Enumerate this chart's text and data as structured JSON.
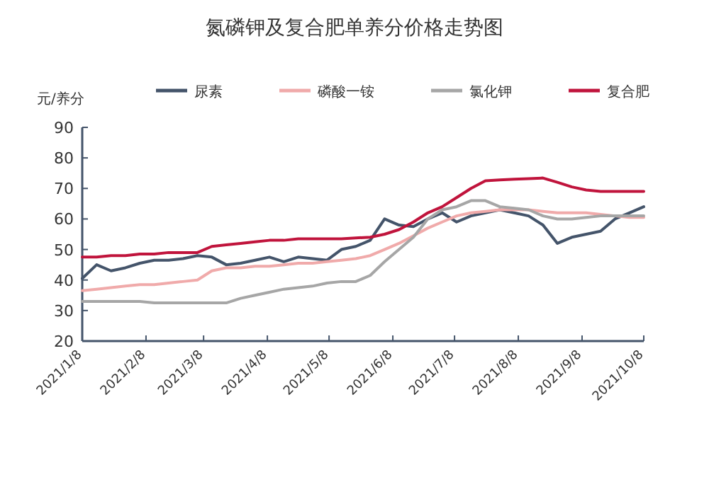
{
  "chart_data": {
    "type": "line",
    "title": "氮磷钾及复合肥单养分价格走势图",
    "ylabel": "元/养分",
    "x": [
      "2021-01-08",
      "2021-01-15",
      "2021-01-22",
      "2021-01-29",
      "2021-02-05",
      "2021-02-12",
      "2021-02-19",
      "2021-02-26",
      "2021-03-05",
      "2021-03-12",
      "2021-03-19",
      "2021-03-26",
      "2021-04-02",
      "2021-04-09",
      "2021-04-16",
      "2021-04-23",
      "2021-04-30",
      "2021-05-07",
      "2021-05-14",
      "2021-05-21",
      "2021-05-28",
      "2021-06-04",
      "2021-06-11",
      "2021-06-18",
      "2021-06-25",
      "2021-07-02",
      "2021-07-09",
      "2021-07-16",
      "2021-07-23",
      "2021-07-30",
      "2021-08-06",
      "2021-08-13",
      "2021-08-20",
      "2021-08-27",
      "2021-09-03",
      "2021-09-10",
      "2021-09-17",
      "2021-09-24",
      "2021-10-01",
      "2021-10-08"
    ],
    "series": [
      {
        "name": "尿素",
        "color": "#44546a",
        "values": [
          40.5,
          45,
          43,
          44,
          45.5,
          46.5,
          46.5,
          47,
          48,
          47.5,
          45,
          45.5,
          46.5,
          47.5,
          46,
          47.5,
          47,
          46.5,
          50,
          51,
          53,
          60,
          58,
          57.5,
          60,
          62,
          59,
          61,
          62,
          63,
          62,
          61,
          58,
          52,
          54,
          55,
          56,
          60,
          62,
          64
        ]
      },
      {
        "name": "磷酸一铵",
        "color": "#f0aaaa",
        "values": [
          36.5,
          37,
          37.5,
          38,
          38.5,
          38.5,
          39,
          39.5,
          40,
          43,
          44,
          44,
          44.5,
          44.5,
          45,
          45.5,
          45.5,
          46,
          46.5,
          47,
          48,
          50,
          52,
          54.5,
          57,
          59,
          61,
          62,
          62.5,
          63,
          63,
          63,
          62.5,
          62,
          62,
          62,
          61.5,
          61,
          60.5,
          60.5
        ]
      },
      {
        "name": "氯化钾",
        "color": "#a6a6a6",
        "values": [
          33,
          33,
          33,
          33,
          33,
          32.5,
          32.5,
          32.5,
          32.5,
          32.5,
          32.5,
          34,
          35,
          36,
          37,
          37.5,
          38,
          39,
          39.5,
          39.5,
          41.5,
          46,
          50,
          54,
          60,
          63,
          64,
          66,
          66,
          64,
          63.5,
          63,
          61,
          60,
          60,
          60.5,
          61,
          61,
          61,
          61
        ]
      },
      {
        "name": "复合肥",
        "color": "#c0143c",
        "values": [
          47.5,
          47.5,
          48,
          48,
          48.5,
          48.5,
          49,
          49,
          49,
          51,
          51.5,
          52,
          52.5,
          53,
          53,
          53.5,
          53.5,
          53.5,
          53.5,
          53.8,
          54,
          55,
          56.5,
          59,
          62,
          64,
          67,
          70,
          72.5,
          72.8,
          73,
          73.2,
          73.4,
          72,
          70.5,
          69.5,
          69,
          69,
          69,
          69
        ]
      }
    ],
    "xlim": [
      "2021-01-08",
      "2021-10-08"
    ],
    "xticks": [
      {
        "value": "2021-01-08",
        "label": "2021/1/8"
      },
      {
        "value": "2021-02-08",
        "label": "2021/2/8"
      },
      {
        "value": "2021-03-08",
        "label": "2021/3/8"
      },
      {
        "value": "2021-04-08",
        "label": "2021/4/8"
      },
      {
        "value": "2021-05-08",
        "label": "2021/5/8"
      },
      {
        "value": "2021-06-08",
        "label": "2021/6/8"
      },
      {
        "value": "2021-07-08",
        "label": "2021/7/8"
      },
      {
        "value": "2021-08-08",
        "label": "2021/8/8"
      },
      {
        "value": "2021-09-08",
        "label": "2021/9/8"
      },
      {
        "value": "2021-10-08",
        "label": "2021/10/8"
      }
    ],
    "ylim": [
      20,
      90
    ],
    "yticks": [
      20,
      30,
      40,
      50,
      60,
      70,
      80,
      90
    ],
    "legend": "top"
  }
}
